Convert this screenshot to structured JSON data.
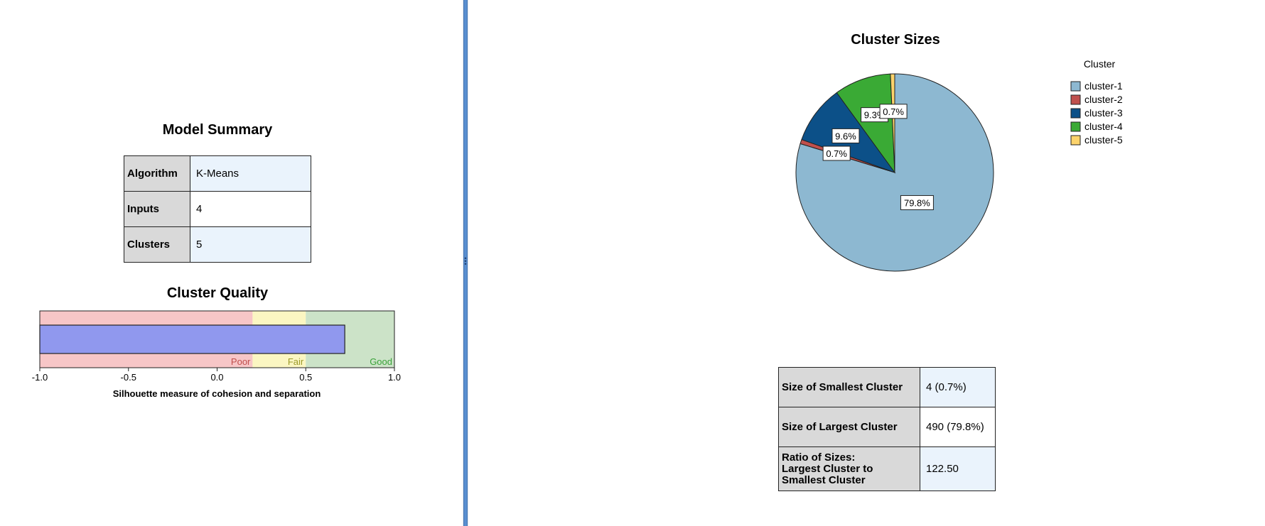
{
  "model_summary": {
    "title": "Model Summary",
    "rows": [
      {
        "label": "Algorithm",
        "value": "K-Means"
      },
      {
        "label": "Inputs",
        "value": "4"
      },
      {
        "label": "Clusters",
        "value": "5"
      }
    ]
  },
  "cluster_quality": {
    "title": "Cluster Quality",
    "xlabel": "Silhouette measure of cohesion and separation",
    "ticks": [
      "-1.0",
      "-0.5",
      "0.0",
      "0.5",
      "1.0"
    ],
    "xlim": [
      -1.0,
      1.0
    ],
    "value": 0.72,
    "bands": [
      {
        "name": "Poor",
        "from": -1.0,
        "to": 0.2,
        "color": "#f7c6c7",
        "text_color": "#c0504d"
      },
      {
        "name": "Fair",
        "from": 0.2,
        "to": 0.5,
        "color": "#fbf6c2",
        "text_color": "#9c9a2a"
      },
      {
        "name": "Good",
        "from": 0.5,
        "to": 1.0,
        "color": "#cce3c8",
        "text_color": "#3aa23a"
      }
    ],
    "bar_color": "#9098ee"
  },
  "cluster_sizes": {
    "title": "Cluster Sizes",
    "legend_title": "Cluster"
  },
  "chart_data": {
    "type": "pie",
    "title": "Cluster Sizes",
    "legend_title": "Cluster",
    "legend_position": "top-right",
    "slices": [
      {
        "name": "cluster-1",
        "value": 79.8,
        "label": "79.8%",
        "color": "#8db8d1"
      },
      {
        "name": "cluster-2",
        "value": 0.7,
        "label": "0.7%",
        "color": "#c0504d"
      },
      {
        "name": "cluster-3",
        "value": 9.6,
        "label": "9.6%",
        "color": "#0c5088"
      },
      {
        "name": "cluster-4",
        "value": 9.3,
        "label": "9.3%",
        "color": "#3aaa35"
      },
      {
        "name": "cluster-5",
        "value": 0.7,
        "label": "0.7%",
        "color": "#fcd36c"
      }
    ]
  },
  "size_summary": {
    "rows": [
      {
        "label": "Size of Smallest Cluster",
        "value": "4 (0.7%)"
      },
      {
        "label": "Size of Largest Cluster",
        "value": "490 (79.8%)"
      },
      {
        "label": "Ratio of Sizes:\nLargest Cluster to\nSmallest Cluster",
        "value": "122.50"
      }
    ]
  }
}
